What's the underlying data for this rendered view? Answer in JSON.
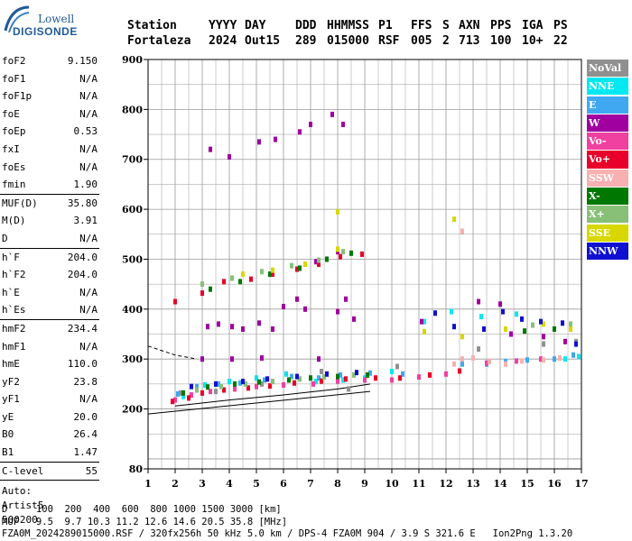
{
  "logo": {
    "line1": "Lowell",
    "line2": "DIGISONDE"
  },
  "header": {
    "labels": [
      "Station",
      "YYYY",
      "DAY",
      "DDD",
      "HHMMSS",
      "P1",
      "FFS",
      "S",
      "AXN",
      "PPS",
      "IGA",
      "PS"
    ],
    "values": [
      "Fortaleza",
      "2024",
      "Out15",
      "289",
      "015000",
      "RSF",
      "005",
      "2",
      "713",
      "100",
      "10+",
      "22"
    ]
  },
  "params": {
    "group1": [
      {
        "k": "foF2",
        "v": "9.150"
      },
      {
        "k": "foF1",
        "v": "N/A"
      },
      {
        "k": "foF1p",
        "v": "N/A"
      },
      {
        "k": "foE",
        "v": "N/A"
      },
      {
        "k": "foEp",
        "v": "0.53"
      },
      {
        "k": "fxI",
        "v": "N/A"
      },
      {
        "k": "foEs",
        "v": "N/A"
      },
      {
        "k": "fmin",
        "v": "1.90"
      }
    ],
    "group2": [
      {
        "k": "MUF(D)",
        "v": "35.80"
      },
      {
        "k": "M(D)",
        "v": "3.91"
      },
      {
        "k": "D",
        "v": "N/A"
      }
    ],
    "group3": [
      {
        "k": "h`F",
        "v": "204.0"
      },
      {
        "k": "h`F2",
        "v": "204.0"
      },
      {
        "k": "h`E",
        "v": "N/A"
      },
      {
        "k": "h`Es",
        "v": "N/A"
      }
    ],
    "group4": [
      {
        "k": "hmF2",
        "v": "234.4"
      },
      {
        "k": "hmF1",
        "v": "N/A"
      },
      {
        "k": "hmE",
        "v": "110.0"
      },
      {
        "k": "yF2",
        "v": "23.8"
      },
      {
        "k": "yF1",
        "v": "N/A"
      },
      {
        "k": "yE",
        "v": "20.0"
      },
      {
        "k": "B0",
        "v": "26.4"
      },
      {
        "k": "B1",
        "v": "1.47"
      }
    ],
    "group5": [
      {
        "k": "C-level",
        "v": "55"
      }
    ],
    "auto": [
      "Auto:",
      "Artist5",
      "500200"
    ]
  },
  "legend": [
    {
      "label": "NoVal",
      "color": "#909090"
    },
    {
      "label": "NNE",
      "color": "#00e8f0"
    },
    {
      "label": "E",
      "color": "#40a8f0"
    },
    {
      "label": "W",
      "color": "#a000a0"
    },
    {
      "label": "Vo-",
      "color": "#f040a0"
    },
    {
      "label": "Vo+",
      "color": "#e8002a"
    },
    {
      "label": "SSW",
      "color": "#f8b0b0"
    },
    {
      "label": "X-",
      "color": "#007800"
    },
    {
      "label": "X+",
      "color": "#88c078"
    },
    {
      "label": "SSE",
      "color": "#d8d800"
    },
    {
      "label": "NNW",
      "color": "#1010d0"
    }
  ],
  "chart_data": {
    "type": "scatter",
    "title": "",
    "xlabel": "",
    "ylabel": "",
    "xlim": [
      1,
      17
    ],
    "ylim": [
      80,
      900
    ],
    "x_ticks": [
      1,
      2,
      3,
      4,
      5,
      6,
      7,
      8,
      9,
      10,
      11,
      12,
      13,
      14,
      15,
      16,
      17
    ],
    "y_ticks": [
      80,
      200,
      300,
      400,
      500,
      600,
      700,
      800,
      900
    ],
    "grid": true,
    "series": [
      {
        "name": "NoVal",
        "color": "#909090",
        "points": [
          [
            2.2,
            232
          ],
          [
            3.5,
            235
          ],
          [
            5.2,
            250
          ],
          [
            7.4,
            275
          ],
          [
            8.4,
            240
          ],
          [
            10.2,
            285
          ],
          [
            13.2,
            320
          ],
          [
            15.6,
            330
          ],
          [
            16.8,
            335
          ]
        ]
      },
      {
        "name": "NNE",
        "color": "#00e8f0",
        "points": [
          [
            2.3,
            225
          ],
          [
            3.1,
            248
          ],
          [
            4.0,
            255
          ],
          [
            5.0,
            262
          ],
          [
            6.1,
            270
          ],
          [
            7.2,
            255
          ],
          [
            8.2,
            258
          ],
          [
            9.0,
            262
          ],
          [
            10.0,
            275
          ],
          [
            11.2,
            375
          ],
          [
            12.2,
            395
          ],
          [
            13.3,
            385
          ],
          [
            14.6,
            390
          ],
          [
            16.4,
            300
          ],
          [
            16.9,
            305
          ]
        ]
      },
      {
        "name": "E",
        "color": "#40a8f0",
        "points": [
          [
            2.1,
            230
          ],
          [
            2.8,
            245
          ],
          [
            3.6,
            250
          ],
          [
            4.4,
            252
          ],
          [
            5.3,
            258
          ],
          [
            6.3,
            265
          ],
          [
            7.3,
            262
          ],
          [
            8.1,
            268
          ],
          [
            9.2,
            272
          ],
          [
            10.4,
            270
          ],
          [
            12.6,
            290
          ],
          [
            13.5,
            290
          ],
          [
            14.2,
            295
          ],
          [
            15.0,
            298
          ],
          [
            16.0,
            300
          ],
          [
            16.7,
            308
          ]
        ]
      },
      {
        "name": "W",
        "color": "#a000a0",
        "points": [
          [
            3.2,
            365
          ],
          [
            3.6,
            370
          ],
          [
            4.1,
            365
          ],
          [
            4.5,
            360
          ],
          [
            5.1,
            372
          ],
          [
            5.6,
            360
          ],
          [
            6.0,
            405
          ],
          [
            6.5,
            420
          ],
          [
            6.8,
            400
          ],
          [
            8.0,
            395
          ],
          [
            8.3,
            420
          ],
          [
            8.6,
            380
          ],
          [
            7.2,
            495
          ],
          [
            8.0,
            515
          ],
          [
            3.3,
            720
          ],
          [
            4.0,
            705
          ],
          [
            5.1,
            735
          ],
          [
            5.7,
            740
          ],
          [
            6.6,
            755
          ],
          [
            7.0,
            770
          ],
          [
            7.8,
            790
          ],
          [
            8.2,
            770
          ],
          [
            3.0,
            300
          ],
          [
            4.1,
            300
          ],
          [
            5.2,
            302
          ],
          [
            7.3,
            300
          ],
          [
            11.1,
            375
          ],
          [
            13.2,
            415
          ],
          [
            14.0,
            410
          ],
          [
            14.4,
            350
          ],
          [
            15.6,
            345
          ],
          [
            16.4,
            335
          ]
        ]
      },
      {
        "name": "Vo-",
        "color": "#f040a0",
        "points": [
          [
            2.0,
            218
          ],
          [
            2.6,
            228
          ],
          [
            3.3,
            235
          ],
          [
            4.2,
            240
          ],
          [
            5.0,
            245
          ],
          [
            6.0,
            248
          ],
          [
            7.1,
            250
          ],
          [
            8.0,
            256
          ],
          [
            9.0,
            258
          ],
          [
            10.0,
            258
          ],
          [
            11.0,
            264
          ],
          [
            12.0,
            270
          ],
          [
            13.5,
            292
          ],
          [
            14.6,
            296
          ],
          [
            15.5,
            300
          ]
        ]
      },
      {
        "name": "Vo+",
        "color": "#e8002a",
        "points": [
          [
            1.9,
            215
          ],
          [
            2.5,
            222
          ],
          [
            3.0,
            232
          ],
          [
            3.8,
            238
          ],
          [
            4.7,
            242
          ],
          [
            5.5,
            246
          ],
          [
            6.4,
            252
          ],
          [
            7.4,
            256
          ],
          [
            8.3,
            260
          ],
          [
            9.4,
            262
          ],
          [
            10.3,
            262
          ],
          [
            11.4,
            268
          ],
          [
            12.5,
            276
          ],
          [
            3.0,
            432
          ],
          [
            3.8,
            455
          ],
          [
            4.8,
            460
          ],
          [
            5.6,
            470
          ],
          [
            6.5,
            480
          ],
          [
            7.3,
            490
          ],
          [
            8.1,
            505
          ],
          [
            8.9,
            510
          ],
          [
            2.0,
            415
          ]
        ]
      },
      {
        "name": "SSW",
        "color": "#f8b0b0",
        "points": [
          [
            12.3,
            290
          ],
          [
            12.6,
            300
          ],
          [
            13.0,
            302
          ],
          [
            13.6,
            295
          ],
          [
            14.2,
            290
          ],
          [
            14.8,
            296
          ],
          [
            15.6,
            298
          ],
          [
            16.2,
            302
          ],
          [
            12.6,
            556
          ]
        ]
      },
      {
        "name": "X-",
        "color": "#007800",
        "points": [
          [
            2.3,
            232
          ],
          [
            3.2,
            244
          ],
          [
            4.2,
            250
          ],
          [
            5.1,
            254
          ],
          [
            6.2,
            258
          ],
          [
            7.0,
            262
          ],
          [
            8.0,
            265
          ],
          [
            9.1,
            268
          ],
          [
            3.3,
            440
          ],
          [
            4.4,
            455
          ],
          [
            5.5,
            470
          ],
          [
            6.6,
            482
          ],
          [
            7.6,
            500
          ],
          [
            8.5,
            512
          ],
          [
            14.9,
            356
          ],
          [
            16.0,
            360
          ]
        ]
      },
      {
        "name": "X+",
        "color": "#88c078",
        "points": [
          [
            2.8,
            238
          ],
          [
            3.7,
            245
          ],
          [
            4.6,
            250
          ],
          [
            5.6,
            255
          ],
          [
            6.6,
            260
          ],
          [
            7.5,
            264
          ],
          [
            8.6,
            268
          ],
          [
            3.0,
            450
          ],
          [
            4.1,
            462
          ],
          [
            5.2,
            475
          ],
          [
            6.3,
            487
          ],
          [
            7.3,
            498
          ],
          [
            8.2,
            515
          ],
          [
            15.2,
            368
          ],
          [
            16.6,
            370
          ]
        ]
      },
      {
        "name": "SSE",
        "color": "#d8d800",
        "points": [
          [
            4.5,
            470
          ],
          [
            5.6,
            478
          ],
          [
            6.8,
            490
          ],
          [
            8.0,
            520
          ],
          [
            11.2,
            355
          ],
          [
            12.6,
            345
          ],
          [
            14.2,
            360
          ],
          [
            15.6,
            370
          ],
          [
            16.6,
            360
          ],
          [
            8.0,
            595
          ],
          [
            12.3,
            580
          ]
        ]
      },
      {
        "name": "NNW",
        "color": "#1010d0",
        "points": [
          [
            2.6,
            245
          ],
          [
            3.5,
            250
          ],
          [
            4.5,
            255
          ],
          [
            5.4,
            260
          ],
          [
            6.5,
            265
          ],
          [
            7.6,
            270
          ],
          [
            8.7,
            273
          ],
          [
            11.6,
            392
          ],
          [
            12.3,
            365
          ],
          [
            13.4,
            360
          ],
          [
            14.1,
            395
          ],
          [
            14.8,
            380
          ],
          [
            15.5,
            375
          ],
          [
            16.3,
            372
          ],
          [
            16.8,
            330
          ]
        ]
      }
    ],
    "fits": [
      {
        "name": "lower-virtual-height",
        "points": [
          [
            1.0,
            190
          ],
          [
            9.2,
            235
          ]
        ]
      },
      {
        "name": "trace-fit",
        "points": [
          [
            2.0,
            206
          ],
          [
            4.0,
            218
          ],
          [
            6.0,
            228
          ],
          [
            8.0,
            240
          ],
          [
            9.2,
            250
          ]
        ]
      },
      {
        "name": "dashed-extrapolation",
        "points": [
          [
            1.0,
            326
          ],
          [
            2.0,
            308
          ],
          [
            2.8,
            300
          ]
        ]
      }
    ]
  },
  "footer": {
    "line1": "D     100  200  400  600  800 1000 1500 3000 [km]",
    "line2": "MUF   9.5  9.7 10.3 11.2 12.6 14.6 20.5 35.8 [MHz]",
    "line3": "FZA0M_2024289015000.RSF / 320fx256h 50 kHz 5.0 km / DPS-4 FZA0M 904 / 3.9 S 321.6 E   Ion2Png 1.3.20"
  }
}
